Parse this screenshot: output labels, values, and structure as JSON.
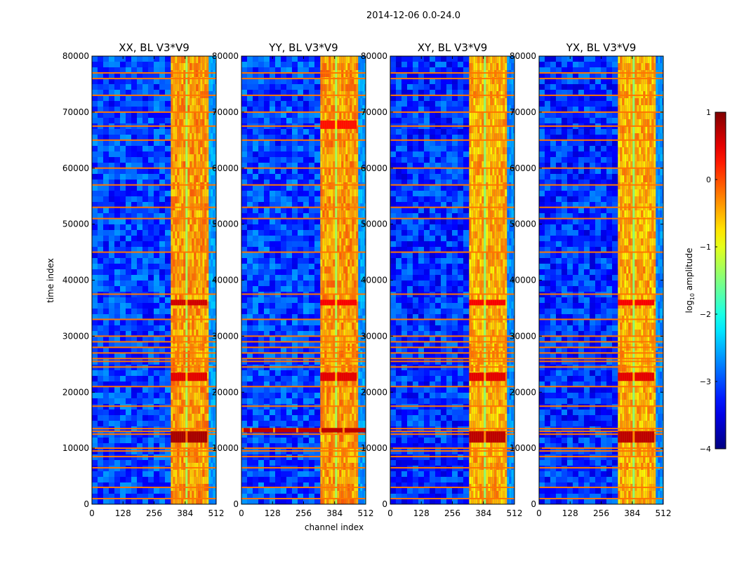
{
  "chart_data": {
    "type": "heatmap",
    "suptitle": "2014-12-06 0.0-24.0",
    "xlabel": "channel index",
    "ylabel": "time index",
    "xlim": [
      0,
      512
    ],
    "ylim": [
      0,
      80000
    ],
    "xticks": [
      0,
      128,
      256,
      384,
      512
    ],
    "xtick_labels": [
      "0",
      "128",
      "256",
      "384",
      "512"
    ],
    "yticks": [
      0,
      10000,
      20000,
      30000,
      40000,
      50000,
      60000,
      70000,
      80000
    ],
    "ytick_labels": [
      "0",
      "10000",
      "20000",
      "30000",
      "40000",
      "50000",
      "60000",
      "70000",
      "80000"
    ],
    "colormap": "jet",
    "panels": [
      {
        "title": "XX, BL V3*V9",
        "base_level": -3.0,
        "bright_band_channels": [
          325,
          512
        ],
        "band_level": -0.4,
        "strong_regions": [
          {
            "channels": [
              325,
              475
            ],
            "time": [
              35500,
              36500
            ],
            "level": 0.6
          },
          {
            "channels": [
              325,
              475
            ],
            "time": [
              22000,
              23500
            ],
            "level": 0.5
          },
          {
            "channels": [
              325,
              475
            ],
            "time": [
              11000,
              13000
            ],
            "level": 0.8
          }
        ],
        "rfi_rows": [
          1000,
          3000,
          6500,
          8500,
          9500,
          10000,
          12500,
          13000,
          13500,
          17500,
          21000,
          24500,
          25500,
          26000,
          27000,
          28000,
          29000,
          30000,
          33000,
          37500,
          45000,
          51000,
          53000,
          57000,
          60000,
          65000,
          67500,
          70000,
          73000,
          76000,
          77000
        ]
      },
      {
        "title": "YY, BL V3*V9",
        "base_level": -3.0,
        "bright_band_channels": [
          325,
          512
        ],
        "band_level": -0.4,
        "strong_regions": [
          {
            "channels": [
              325,
              475
            ],
            "time": [
              35500,
              36500
            ],
            "level": 0.4
          },
          {
            "channels": [
              325,
              475
            ],
            "time": [
              22000,
              23500
            ],
            "level": 0.5
          },
          {
            "channels": [
              0,
              512
            ],
            "time": [
              12800,
              13600
            ],
            "level": 0.7
          },
          {
            "channels": [
              325,
              475
            ],
            "time": [
              67000,
              68500
            ],
            "level": 0.3
          }
        ],
        "rfi_rows": [
          1000,
          3000,
          6500,
          8500,
          9500,
          10000,
          12500,
          13000,
          13500,
          17500,
          21000,
          24500,
          25500,
          26000,
          27000,
          28000,
          29000,
          30000,
          33000,
          37500,
          45000,
          51000,
          53000,
          57000,
          60000,
          65000,
          67500,
          70000,
          73000,
          76000,
          77000
        ]
      },
      {
        "title": "XY, BL V3*V9",
        "base_level": -3.1,
        "bright_band_channels": [
          325,
          512
        ],
        "band_level": -0.5,
        "strong_regions": [
          {
            "channels": [
              325,
              475
            ],
            "time": [
              35500,
              36500
            ],
            "level": 0.4
          },
          {
            "channels": [
              325,
              475
            ],
            "time": [
              22000,
              23500
            ],
            "level": 0.5
          },
          {
            "channels": [
              325,
              475
            ],
            "time": [
              11000,
              13000
            ],
            "level": 0.7
          }
        ],
        "rfi_rows": [
          1000,
          3000,
          6500,
          8500,
          9500,
          10000,
          12500,
          13000,
          13500,
          17500,
          21000,
          24500,
          25500,
          26000,
          27000,
          28000,
          29000,
          30000,
          33000,
          37500,
          45000,
          51000,
          53000,
          57000,
          60000,
          65000,
          67500,
          70000,
          73000,
          76000,
          77000
        ]
      },
      {
        "title": "YX, BL V3*V9",
        "base_level": -3.1,
        "bright_band_channels": [
          325,
          512
        ],
        "band_level": -0.5,
        "strong_regions": [
          {
            "channels": [
              325,
              475
            ],
            "time": [
              35500,
              36500
            ],
            "level": 0.4
          },
          {
            "channels": [
              325,
              475
            ],
            "time": [
              22000,
              23500
            ],
            "level": 0.5
          },
          {
            "channels": [
              325,
              475
            ],
            "time": [
              11000,
              13000
            ],
            "level": 0.7
          }
        ],
        "rfi_rows": [
          1000,
          3000,
          6500,
          8500,
          9500,
          10000,
          12500,
          13000,
          13500,
          17500,
          21000,
          24500,
          25500,
          26000,
          27000,
          28000,
          29000,
          30000,
          33000,
          37500,
          45000,
          51000,
          53000,
          57000,
          60000,
          65000,
          67500,
          70000,
          73000,
          76000,
          77000
        ]
      }
    ],
    "colorbar": {
      "label": "log10 amplitude",
      "label_base": "log",
      "label_sub": "10",
      "label_rest": " amplitude",
      "range": [
        -4,
        1
      ],
      "ticks": [
        1,
        0,
        -1,
        -2,
        -3,
        -4
      ],
      "tick_labels": [
        "1",
        "0",
        "−1",
        "−2",
        "−3",
        "−4"
      ]
    }
  }
}
